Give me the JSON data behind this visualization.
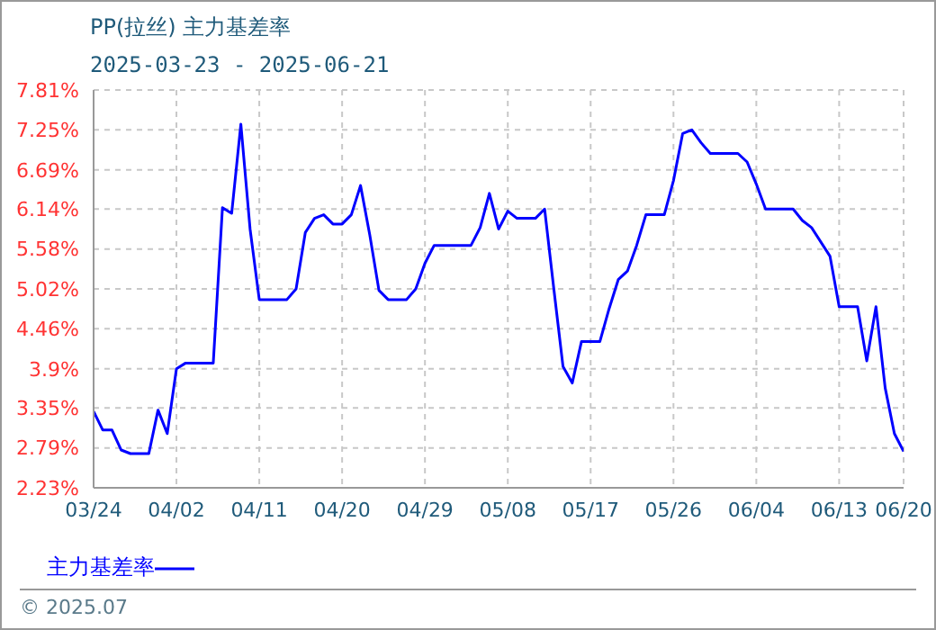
{
  "chart_data": {
    "type": "line",
    "title": "PP(拉丝) 主力基差率",
    "subtitle": "2025-03-23 - 2025-06-21",
    "annotations": [
      "© 2025.07"
    ],
    "x": [
      "2025-03-24",
      "2025-03-25",
      "2025-03-26",
      "2025-03-27",
      "2025-03-28",
      "2025-03-30",
      "2025-03-31",
      "2025-04-01",
      "2025-04-02",
      "2025-04-03",
      "2025-04-06",
      "2025-04-07",
      "2025-04-08",
      "2025-04-09",
      "2025-04-10",
      "2025-04-11",
      "2025-04-14",
      "2025-04-15",
      "2025-04-16",
      "2025-04-17",
      "2025-04-18",
      "2025-04-19",
      "2025-04-20",
      "2025-04-21",
      "2025-04-22",
      "2025-04-23",
      "2025-04-24",
      "2025-04-25",
      "2025-04-27",
      "2025-04-28",
      "2025-04-29",
      "2025-04-30",
      "2025-05-04",
      "2025-05-05",
      "2025-05-06",
      "2025-05-07",
      "2025-05-08",
      "2025-05-09",
      "2025-05-11",
      "2025-05-12",
      "2025-05-13",
      "2025-05-14",
      "2025-05-15",
      "2025-05-16",
      "2025-05-18",
      "2025-05-19",
      "2025-05-20",
      "2025-05-21",
      "2025-05-22",
      "2025-05-23",
      "2025-05-25",
      "2025-05-26",
      "2025-05-27",
      "2025-05-28",
      "2025-05-29",
      "2025-05-30",
      "2025-06-02",
      "2025-06-03",
      "2025-06-04",
      "2025-06-05",
      "2025-06-08",
      "2025-06-09",
      "2025-06-10",
      "2025-06-12",
      "2025-06-13",
      "2025-06-15",
      "2025-06-16",
      "2025-06-17",
      "2025-06-18",
      "2025-06-19",
      "2025-06-20"
    ],
    "series": [
      {
        "name": "主力基差率",
        "color": "#0000ff",
        "values": [
          3.3,
          3.04,
          3.04,
          2.76,
          2.71,
          2.71,
          3.32,
          2.99,
          3.9,
          3.98,
          3.98,
          6.16,
          6.08,
          7.33,
          5.86,
          4.87,
          4.87,
          5.02,
          5.81,
          6.01,
          6.06,
          5.93,
          5.93,
          6.06,
          6.47,
          5.78,
          5.0,
          4.87,
          4.87,
          5.02,
          5.38,
          5.63,
          5.63,
          5.88,
          6.36,
          5.86,
          6.11,
          6.01,
          6.01,
          6.14,
          5.02,
          3.93,
          3.7,
          4.28,
          4.28,
          4.74,
          5.15,
          5.27,
          5.63,
          6.06,
          6.06,
          6.54,
          7.2,
          7.25,
          7.07,
          6.92,
          6.92,
          6.8,
          6.49,
          6.14,
          6.14,
          5.98,
          5.88,
          5.48,
          4.77,
          4.77,
          4.01,
          4.77,
          3.63,
          2.99,
          2.74
        ]
      }
    ],
    "xlim": [
      "2025-03-24",
      "2025-06-20"
    ],
    "xticks": [
      {
        "value": "2025-03-24",
        "label": "03/24"
      },
      {
        "value": "2025-04-02",
        "label": "04/02"
      },
      {
        "value": "2025-04-11",
        "label": "04/11"
      },
      {
        "value": "2025-04-20",
        "label": "04/20"
      },
      {
        "value": "2025-04-29",
        "label": "04/29"
      },
      {
        "value": "2025-05-08",
        "label": "05/08"
      },
      {
        "value": "2025-05-17",
        "label": "05/17"
      },
      {
        "value": "2025-05-26",
        "label": "05/26"
      },
      {
        "value": "2025-06-04",
        "label": "06/04"
      },
      {
        "value": "2025-06-13",
        "label": "06/13"
      },
      {
        "value": "2025-06-20",
        "label": "06/20"
      }
    ],
    "ylim": [
      2.23,
      7.81
    ],
    "yticks": [
      {
        "value": 2.23,
        "label": "2.23%"
      },
      {
        "value": 2.79,
        "label": "2.79%"
      },
      {
        "value": 3.35,
        "label": "3.35%"
      },
      {
        "value": 3.9,
        "label": "3.9%"
      },
      {
        "value": 4.46,
        "label": "4.46%"
      },
      {
        "value": 5.02,
        "label": "5.02%"
      },
      {
        "value": 5.58,
        "label": "5.58%"
      },
      {
        "value": 6.14,
        "label": "6.14%"
      },
      {
        "value": 6.69,
        "label": "6.69%"
      },
      {
        "value": 7.25,
        "label": "7.25%"
      },
      {
        "value": 7.81,
        "label": "7.81%"
      }
    ],
    "grid": true,
    "legend": "bottom left",
    "marker": "none",
    "line_style": "solid"
  }
}
